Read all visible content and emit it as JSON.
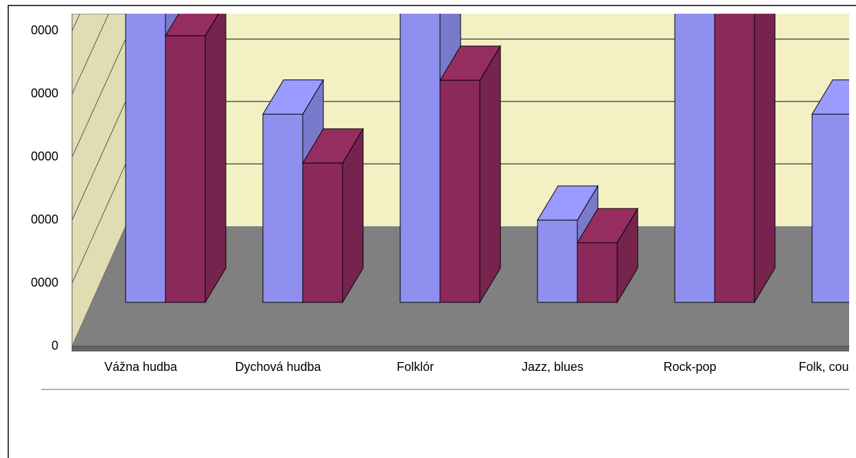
{
  "chart_data": {
    "type": "bar3d",
    "categories": [
      "Vážna hudba",
      "Dychová hudba",
      "Folklór",
      "Jazz, blues",
      "Rock-pop",
      "Folk, coun"
    ],
    "series": [
      {
        "color": "#8f8ff0",
        "values": [
          52000,
          30000,
          50000,
          13100,
          60000,
          30000
        ]
      },
      {
        "color": "#8b2a5a",
        "values": [
          42500,
          22200,
          35400,
          9500,
          55000,
          null
        ]
      }
    ],
    "ylim": [
      0,
      50000
    ],
    "yticks": [
      0,
      {
        "value": 10000,
        "label": "0000"
      },
      {
        "value": 20000,
        "label": "0000"
      },
      {
        "value": 30000,
        "label": "0000"
      },
      {
        "value": 40000,
        "label": "0000"
      },
      {
        "value": 50000,
        "label": "0000"
      }
    ],
    "grid": true
  }
}
